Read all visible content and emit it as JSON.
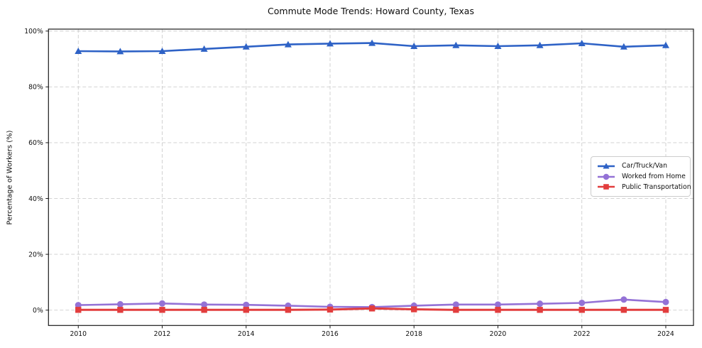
{
  "figure": {
    "title": "Commute Mode Trends: Howard County, Texas",
    "ylabel": "Percentage of Workers (%)"
  },
  "chart_data": {
    "type": "line",
    "title": "Commute Mode Trends: Howard County, Texas",
    "xlabel": "",
    "ylabel": "Percentage of Workers (%)",
    "x": [
      2010,
      2011,
      2012,
      2013,
      2014,
      2015,
      2016,
      2017,
      2018,
      2019,
      2020,
      2021,
      2022,
      2023,
      2024
    ],
    "x_ticks": [
      2010,
      2012,
      2014,
      2016,
      2018,
      2020,
      2022,
      2024
    ],
    "y_ticks": [
      0,
      20,
      40,
      60,
      80,
      100
    ],
    "y_tick_suffix": "%",
    "xlim": [
      2009.29,
      2024.66
    ],
    "ylim": [
      -5.5,
      100.7
    ],
    "grid": true,
    "grid_style": "dashed",
    "legend_position": "center-right",
    "series": [
      {
        "name": "Car/Truck/Van",
        "marker": "triangle",
        "color": "#2e62c6",
        "values": [
          92.8,
          92.7,
          92.8,
          93.6,
          94.4,
          95.2,
          95.5,
          95.7,
          94.6,
          94.9,
          94.6,
          94.9,
          95.6,
          94.4,
          94.9
        ]
      },
      {
        "name": "Worked from Home",
        "marker": "circle",
        "color": "#9472d6",
        "values": [
          1.8,
          2.1,
          2.4,
          2.0,
          1.9,
          1.6,
          1.2,
          1.1,
          1.6,
          2.0,
          2.0,
          2.3,
          2.6,
          3.8,
          2.9
        ]
      },
      {
        "name": "Public Transportation",
        "marker": "square",
        "color": "#e23d3d",
        "values": [
          0.1,
          0.1,
          0.1,
          0.1,
          0.1,
          0.1,
          0.2,
          0.6,
          0.3,
          0.1,
          0.1,
          0.1,
          0.1,
          0.1,
          0.1
        ]
      }
    ]
  }
}
